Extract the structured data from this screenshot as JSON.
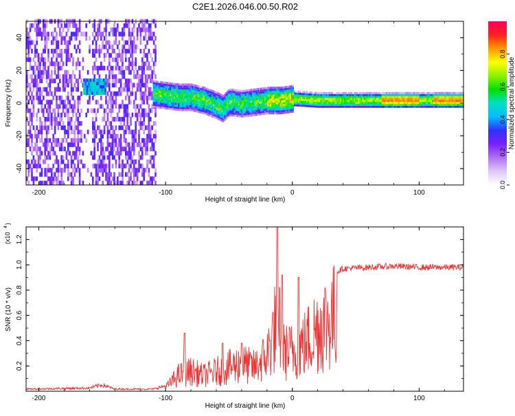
{
  "title": "C2E1.2026.046.00.50.R02",
  "chart_data": [
    {
      "type": "heatmap",
      "name": "spectrogram",
      "xlabel": "Height of straight line (km)",
      "ylabel": "Frequency (Hz)",
      "xlim": [
        -210,
        135
      ],
      "ylim": [
        -50,
        50
      ],
      "xticks": [
        -200,
        -100,
        0,
        100
      ],
      "yticks": [
        -40,
        -20,
        0,
        20,
        40
      ],
      "colorbar": {
        "label": "Normalized spectral amplitude",
        "ticks": [
          "0.0",
          "0.2",
          "0.4",
          "0.6",
          "0.8"
        ],
        "range": [
          0,
          1
        ],
        "colors": [
          "#ffffff",
          "#e0c8f8",
          "#b070f0",
          "#7a1fff",
          "#3030ff",
          "#00bfff",
          "#00e0c0",
          "#00e000",
          "#90f000",
          "#ffff00",
          "#ff9900",
          "#ff2020",
          "#ff0060"
        ]
      },
      "features": {
        "noise_region_km": [
          -210,
          -108
        ],
        "noise_gap_km": [
          -168,
          -158
        ],
        "hot_cluster": {
          "x": [
            -165,
            -148
          ],
          "freq": [
            5,
            14
          ]
        },
        "ridge": [
          [
            -110,
            5
          ],
          [
            -100,
            4
          ],
          [
            -90,
            3
          ],
          [
            -80,
            3
          ],
          [
            -70,
            1
          ],
          [
            -60,
            -2
          ],
          [
            -55,
            -4
          ],
          [
            -50,
            0
          ],
          [
            -40,
            -1
          ],
          [
            -30,
            0
          ],
          [
            -20,
            1
          ],
          [
            -10,
            1
          ],
          [
            0,
            2
          ],
          [
            20,
            1
          ],
          [
            60,
            1
          ],
          [
            100,
            1
          ],
          [
            135,
            1
          ]
        ]
      }
    },
    {
      "type": "line",
      "name": "snr",
      "xlabel": "Height of straight line (km)",
      "ylabel": "SNR (10 * v/v)",
      "yscale_label": "(x10",
      "yscale_exp": "4",
      "xlim": [
        -210,
        135
      ],
      "ylim": [
        0,
        1.3
      ],
      "xticks": [
        -200,
        -100,
        0,
        100
      ],
      "yticks": [
        "0.2",
        "0.4",
        "0.6",
        "0.8",
        "1.0",
        "1.2"
      ],
      "color": "#ee3333",
      "envelope": [
        [
          -210,
          0.02
        ],
        [
          -160,
          0.03
        ],
        [
          -150,
          0.06
        ],
        [
          -140,
          0.02
        ],
        [
          -110,
          0.02
        ],
        [
          -100,
          0.05
        ],
        [
          -90,
          0.2
        ],
        [
          -80,
          0.25
        ],
        [
          -70,
          0.2
        ],
        [
          -60,
          0.25
        ],
        [
          -50,
          0.3
        ],
        [
          -40,
          0.35
        ],
        [
          -30,
          0.3
        ],
        [
          -20,
          0.45
        ],
        [
          -12,
          0.9
        ],
        [
          -10,
          0.5
        ],
        [
          0,
          0.5
        ],
        [
          10,
          0.6
        ],
        [
          20,
          0.8
        ],
        [
          30,
          0.92
        ],
        [
          40,
          0.97
        ],
        [
          60,
          0.98
        ],
        [
          80,
          0.99
        ],
        [
          100,
          0.98
        ],
        [
          135,
          0.98
        ]
      ],
      "peaks": [
        [
          -85,
          0.46
        ],
        [
          -55,
          0.38
        ],
        [
          -40,
          0.38
        ],
        [
          -12,
          1.3
        ],
        [
          -10,
          0.82
        ],
        [
          -8,
          0.92
        ],
        [
          5,
          0.9
        ]
      ]
    }
  ]
}
